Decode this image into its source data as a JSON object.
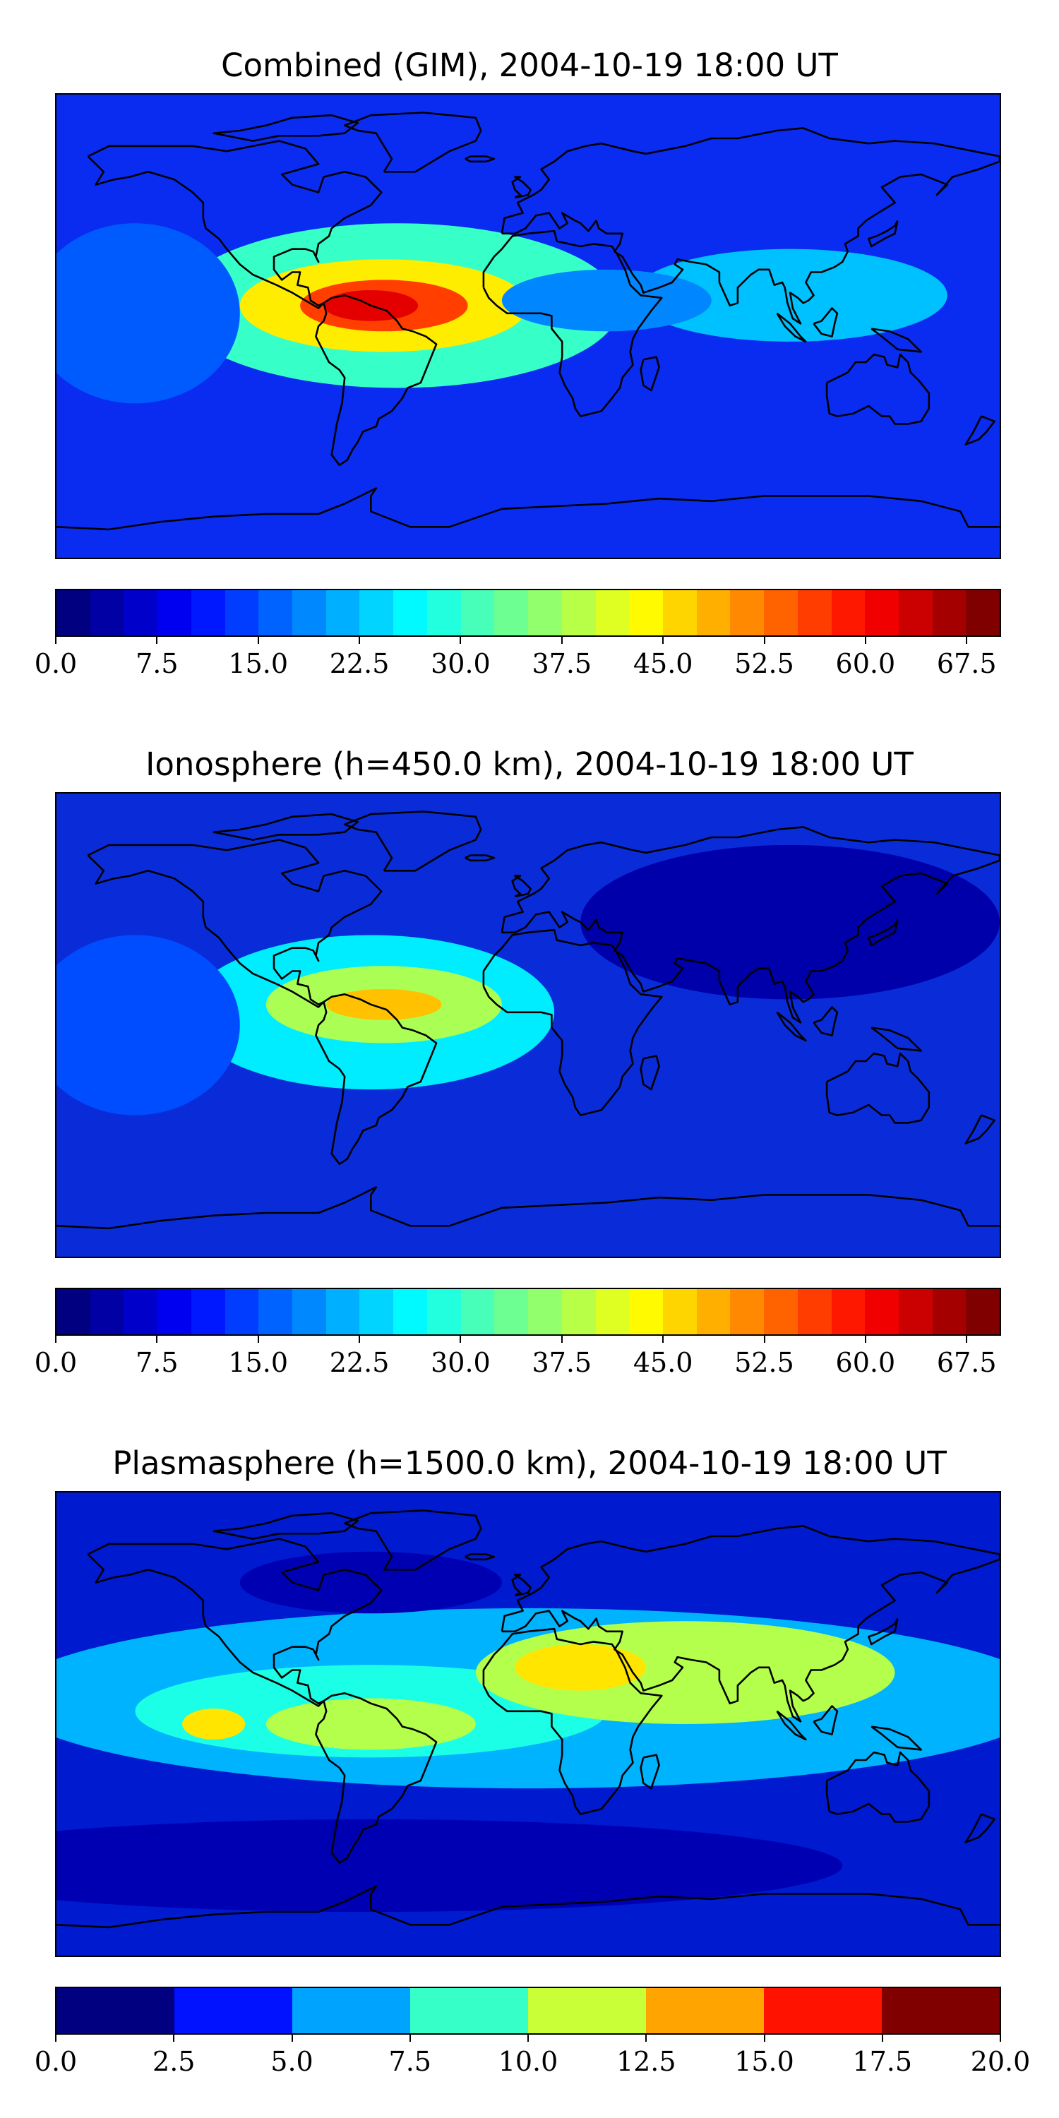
{
  "chart_data": [
    {
      "type": "heatmap",
      "title": "Combined (GIM), 2004-10-19 18:00 UT",
      "colorbar_levels": [
        0.0,
        2.5,
        5.0,
        7.5,
        10.0,
        12.5,
        15.0,
        17.5,
        20.0,
        22.5,
        25.0,
        27.5,
        30.0,
        32.5,
        35.0,
        37.5,
        40.0,
        42.5,
        45.0,
        47.5,
        50.0,
        52.5,
        55.0,
        57.5,
        60.0,
        62.5,
        65.0,
        67.5,
        70.0
      ],
      "colorbar_ticks": [
        "0.0",
        "7.5",
        "15.0",
        "22.5",
        "30.0",
        "37.5",
        "45.0",
        "52.5",
        "60.0",
        "67.5"
      ],
      "colormap": "jet",
      "background_color": "#0a2cf0",
      "blobs": [
        {
          "lon": -50,
          "lat": 8,
          "rx": 85,
          "ry": 32,
          "value": 30
        },
        {
          "lon": -55,
          "lat": 8,
          "rx": 55,
          "ry": 18,
          "value": 45
        },
        {
          "lon": -55,
          "lat": 8,
          "rx": 32,
          "ry": 10,
          "value": 57
        },
        {
          "lon": -60,
          "lat": 8,
          "rx": 18,
          "ry": 6,
          "value": 63
        },
        {
          "lon": 100,
          "lat": 12,
          "rx": 60,
          "ry": 18,
          "value": 22
        },
        {
          "lon": 30,
          "lat": 10,
          "rx": 40,
          "ry": 12,
          "value": 18
        },
        {
          "lon": -150,
          "lat": 5,
          "rx": 40,
          "ry": 35,
          "value": 15
        }
      ]
    },
    {
      "type": "heatmap",
      "title": "Ionosphere  (h=450.0 km), 2004-10-19 18:00 UT",
      "colorbar_levels": [
        0.0,
        2.5,
        5.0,
        7.5,
        10.0,
        12.5,
        15.0,
        17.5,
        20.0,
        22.5,
        25.0,
        27.5,
        30.0,
        32.5,
        35.0,
        37.5,
        40.0,
        42.5,
        45.0,
        47.5,
        50.0,
        52.5,
        55.0,
        57.5,
        60.0,
        62.5,
        65.0,
        67.5,
        70.0
      ],
      "colorbar_ticks": [
        "0.0",
        "7.5",
        "15.0",
        "22.5",
        "30.0",
        "37.5",
        "45.0",
        "52.5",
        "60.0",
        "67.5"
      ],
      "colormap": "jet",
      "background_color": "#0a2cd8",
      "blobs": [
        {
          "lon": -60,
          "lat": 5,
          "rx": 70,
          "ry": 30,
          "value": 25
        },
        {
          "lon": -55,
          "lat": 8,
          "rx": 45,
          "ry": 15,
          "value": 38
        },
        {
          "lon": -55,
          "lat": 8,
          "rx": 22,
          "ry": 6,
          "value": 48
        },
        {
          "lon": 100,
          "lat": 40,
          "rx": 80,
          "ry": 30,
          "value": 3
        },
        {
          "lon": -150,
          "lat": 0,
          "rx": 40,
          "ry": 35,
          "value": 14
        }
      ]
    },
    {
      "type": "heatmap",
      "title": "Plasmasphere (h=1500.0 km), 2004-10-19 18:00 UT",
      "colorbar_levels": [
        0.0,
        2.5,
        5.0,
        7.5,
        10.0,
        12.5,
        15.0,
        17.5,
        20.0
      ],
      "colorbar_ticks": [
        "0.0",
        "2.5",
        "5.0",
        "7.5",
        "10.0",
        "12.5",
        "15.0",
        "17.5",
        "20.0"
      ],
      "colormap": "jet",
      "background_color": "#001ad0",
      "blobs": [
        {
          "lon": 0,
          "lat": 10,
          "rx": 200,
          "ry": 35,
          "value": 6
        },
        {
          "lon": -60,
          "lat": 5,
          "rx": 90,
          "ry": 18,
          "value": 8
        },
        {
          "lon": 60,
          "lat": 20,
          "rx": 80,
          "ry": 20,
          "value": 11
        },
        {
          "lon": -60,
          "lat": 0,
          "rx": 40,
          "ry": 10,
          "value": 11
        },
        {
          "lon": 20,
          "lat": 22,
          "rx": 25,
          "ry": 9,
          "value": 13
        },
        {
          "lon": -120,
          "lat": 0,
          "rx": 12,
          "ry": 6,
          "value": 13
        },
        {
          "lon": -60,
          "lat": 55,
          "rx": 50,
          "ry": 12,
          "value": 1
        },
        {
          "lon": -60,
          "lat": -55,
          "rx": 180,
          "ry": 18,
          "value": 1
        }
      ]
    }
  ]
}
